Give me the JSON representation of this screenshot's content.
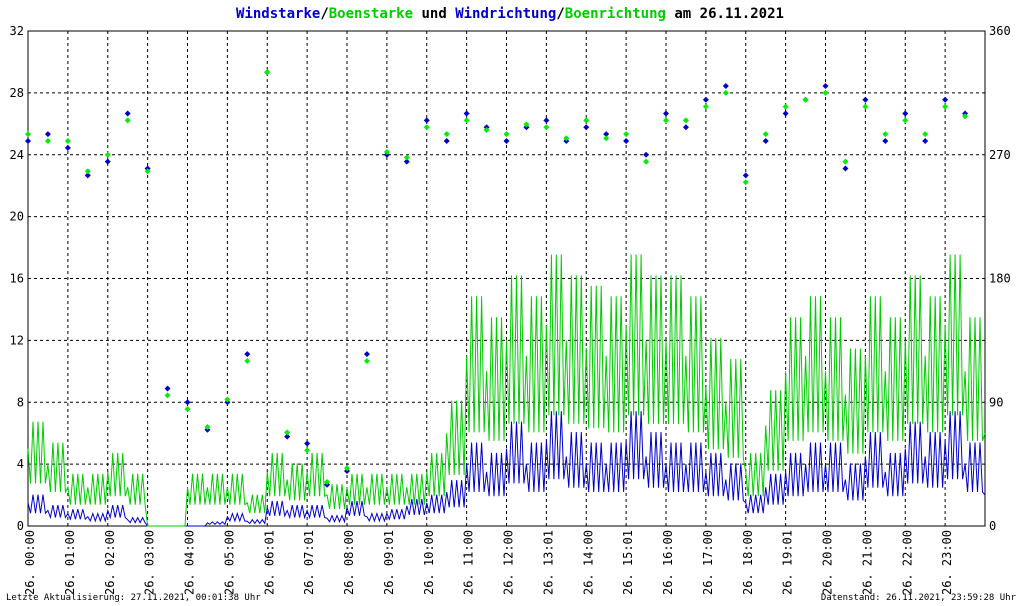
{
  "chart_data": {
    "type": "line",
    "title_parts": [
      {
        "text": "Windstarke",
        "color": "#0000cc"
      },
      {
        "text": "/",
        "color": "#000000"
      },
      {
        "text": "Boenstarke",
        "color": "#00cc00"
      },
      {
        "text": " und ",
        "color": "#000000"
      },
      {
        "text": "Windrichtung",
        "color": "#0000cc"
      },
      {
        "text": "/",
        "color": "#000000"
      },
      {
        "text": "Boenrichtung",
        "color": "#00cc00"
      },
      {
        "text": " am 26.11.2021",
        "color": "#000000"
      }
    ],
    "ylim_left": [
      0,
      32
    ],
    "yticks_left": [
      "0",
      "4",
      "8",
      "12",
      "16",
      "20",
      "24",
      "28",
      "32"
    ],
    "ylim_right": [
      0,
      360
    ],
    "yticks_right": [
      "0",
      "90",
      "180",
      "270",
      "360"
    ],
    "xticks": [
      "26. 00:00",
      "26. 01:00",
      "26. 02:00",
      "26. 03:00",
      "26. 04:00",
      "26. 05:00",
      "26. 06:01",
      "26. 07:01",
      "26. 08:00",
      "26. 09:01",
      "26. 10:00",
      "26. 11:00",
      "26. 12:00",
      "26. 13:01",
      "26. 14:00",
      "26. 15:01",
      "26. 16:00",
      "26. 17:00",
      "26. 18:00",
      "26. 19:01",
      "26. 20:00",
      "26. 21:00",
      "26. 22:00",
      "26. 23:00"
    ],
    "grid": true,
    "series": [
      {
        "name": "Windstarke",
        "axis": "left",
        "style": "line",
        "color": "#0000cc",
        "x_hours": [
          0,
          0.5,
          1,
          1.5,
          2,
          2.5,
          3,
          3.5,
          4,
          4.5,
          5,
          5.5,
          6,
          6.5,
          7,
          7.5,
          8,
          8.5,
          9,
          9.5,
          10,
          10.5,
          11,
          11.5,
          12,
          12.5,
          13,
          13.5,
          14,
          14.5,
          15,
          15.5,
          16,
          16.5,
          17,
          17.5,
          18,
          18.5,
          19,
          19.5,
          20,
          20.5,
          21,
          21.5,
          22,
          22.5,
          23,
          23.5,
          24
        ],
        "values": [
          1.5,
          1.0,
          0.8,
          0.6,
          1.0,
          0.4,
          0.0,
          0.0,
          0.0,
          0.2,
          0.6,
          0.3,
          1.2,
          1.0,
          1.0,
          0.5,
          1.2,
          0.6,
          0.8,
          1.3,
          1.5,
          2.2,
          4.0,
          3.5,
          5.0,
          4.0,
          5.5,
          4.5,
          4.0,
          4.0,
          5.5,
          4.5,
          4.0,
          4.0,
          3.5,
          3.0,
          1.5,
          2.5,
          3.5,
          4.0,
          4.0,
          3.0,
          4.5,
          3.5,
          5.0,
          4.5,
          5.5,
          4.0,
          2.0
        ]
      },
      {
        "name": "Boenstarke",
        "axis": "left",
        "style": "line",
        "color": "#00cc00",
        "x_hours": [
          0,
          0.5,
          1,
          1.5,
          2,
          2.5,
          3,
          3.5,
          4,
          4.5,
          5,
          5.5,
          6,
          6.5,
          7,
          7.5,
          8,
          8.5,
          9,
          9.5,
          10,
          10.5,
          11,
          11.5,
          12,
          12.5,
          13,
          13.5,
          14,
          14.5,
          15,
          15.5,
          16,
          16.5,
          17,
          17.5,
          18,
          18.5,
          19,
          19.5,
          20,
          20.5,
          21,
          21.5,
          22,
          22.5,
          23,
          23.5,
          24
        ],
        "values": [
          5.0,
          4.0,
          2.5,
          2.5,
          3.5,
          2.5,
          0.0,
          0.0,
          2.5,
          2.5,
          2.5,
          1.5,
          3.5,
          3.0,
          3.5,
          2.0,
          2.5,
          2.5,
          2.5,
          2.5,
          3.5,
          6.0,
          11.0,
          10.0,
          12.0,
          11.0,
          13.0,
          12.0,
          11.5,
          11.0,
          13.0,
          12.0,
          12.0,
          11.0,
          9.0,
          8.0,
          3.5,
          6.5,
          10.0,
          11.0,
          10.0,
          8.5,
          11.0,
          10.0,
          12.0,
          11.0,
          13.0,
          10.0,
          6.0
        ]
      },
      {
        "name": "Windrichtung",
        "axis": "right",
        "style": "scatter",
        "color": "#0000cc",
        "x_hours": [
          0,
          0.5,
          1,
          1.5,
          2,
          2.5,
          3,
          3.5,
          4,
          4.5,
          5,
          5.5,
          6,
          6.5,
          7,
          7.5,
          8,
          8.5,
          9,
          9.5,
          10,
          10.5,
          11,
          11.5,
          12,
          12.5,
          13,
          13.5,
          14,
          14.5,
          15,
          15.5,
          16,
          16.5,
          17,
          17.5,
          18,
          18.5,
          19,
          19.5,
          20,
          20.5,
          21,
          21.5,
          22,
          22.5,
          23,
          23.5
        ],
        "values": [
          280,
          285,
          275,
          255,
          265,
          300,
          260,
          100,
          90,
          70,
          90,
          125,
          330,
          65,
          60,
          30,
          40,
          125,
          270,
          265,
          295,
          280,
          300,
          290,
          280,
          290,
          295,
          280,
          290,
          285,
          280,
          270,
          300,
          290,
          310,
          320,
          255,
          280,
          300,
          310,
          320,
          260,
          310,
          280,
          300,
          280,
          310,
          300
        ]
      },
      {
        "name": "Boenrichtung",
        "axis": "right",
        "style": "scatter",
        "color": "#00ee00",
        "x_hours": [
          0,
          0.5,
          1,
          1.5,
          2,
          2.5,
          3,
          3.5,
          4,
          4.5,
          5,
          5.5,
          6,
          6.5,
          7,
          7.5,
          8,
          8.5,
          9,
          9.5,
          10,
          10.5,
          11,
          11.5,
          12,
          12.5,
          13,
          13.5,
          14,
          14.5,
          15,
          15.5,
          16,
          16.5,
          17,
          17.5,
          18,
          18.5,
          19,
          19.5,
          20,
          20.5,
          21,
          21.5,
          22,
          22.5,
          23,
          23.5
        ],
        "values": [
          285,
          280,
          280,
          258,
          270,
          295,
          258,
          95,
          85,
          72,
          92,
          120,
          330,
          68,
          55,
          32,
          42,
          120,
          272,
          268,
          290,
          285,
          295,
          288,
          285,
          292,
          290,
          282,
          295,
          282,
          285,
          265,
          295,
          295,
          305,
          315,
          250,
          285,
          305,
          310,
          315,
          265,
          305,
          285,
          295,
          285,
          305,
          298
        ]
      }
    ]
  },
  "footer": {
    "left": "Letzte Aktualisierung: 27.11.2021, 00:01:38 Uhr",
    "right": "Datenstand: 26.11.2021, 23:59:28 Uhr"
  }
}
